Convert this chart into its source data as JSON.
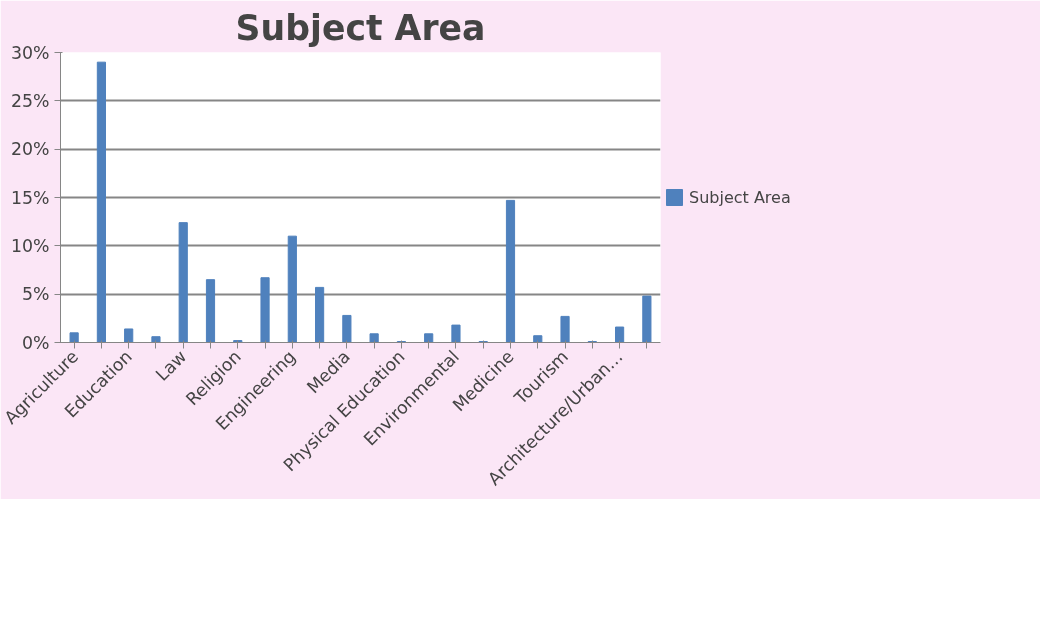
{
  "chart_data": {
    "type": "bar",
    "title": "Subject Area",
    "categories": [
      "Agriculture",
      null,
      "Education",
      null,
      "Law",
      null,
      "Religion",
      null,
      "Engineering",
      null,
      "Media",
      null,
      "Physical Education",
      null,
      "Environmental",
      null,
      "Medicine",
      null,
      "Tourism",
      null,
      "Architecture/Urban…",
      null
    ],
    "series": [
      {
        "name": "Subject Area",
        "color": "#4f81bd",
        "values": [
          1,
          29,
          1.4,
          0.6,
          12.4,
          6.5,
          0.2,
          6.7,
          11,
          5.7,
          2.8,
          0.9,
          0.1,
          0.9,
          1.8,
          0.1,
          14.7,
          0.7,
          2.7,
          0.1,
          1.6,
          4.8
        ]
      }
    ],
    "ylim": [
      0,
      30
    ],
    "yticks": [
      {
        "value": 0,
        "label": "0%"
      },
      {
        "value": 5,
        "label": "5%"
      },
      {
        "value": 10,
        "label": "10%"
      },
      {
        "value": 15,
        "label": "15%"
      },
      {
        "value": 20,
        "label": "20%"
      },
      {
        "value": 25,
        "label": "25%"
      },
      {
        "value": 30,
        "label": "30%"
      }
    ],
    "grid": "y",
    "legend": "right"
  }
}
